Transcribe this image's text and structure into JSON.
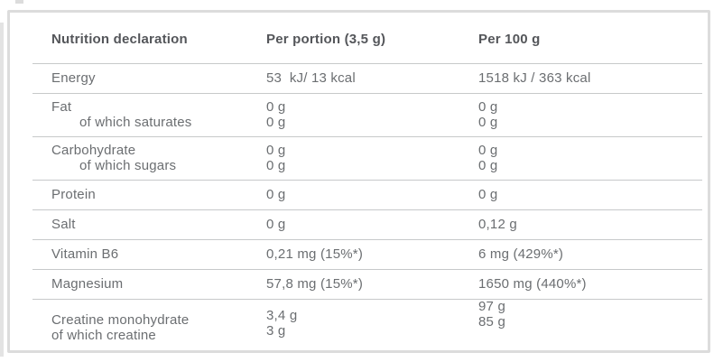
{
  "table": {
    "columns": [
      "Nutrition declaration",
      "Per portion (3,5 g)",
      "Per 100 g"
    ],
    "rows": [
      {
        "labels": [
          "Energy"
        ],
        "indent": [
          false
        ],
        "per_portion": [
          "53  kJ/ 13 kcal"
        ],
        "per_100g": [
          "1518 kJ / 363 kcal"
        ],
        "style": "single"
      },
      {
        "labels": [
          "Fat",
          "of which saturates"
        ],
        "indent": [
          false,
          true
        ],
        "per_portion": [
          "0 g",
          "0 g"
        ],
        "per_100g": [
          "0 g",
          "0 g"
        ],
        "style": "double"
      },
      {
        "labels": [
          "Carbohydrate",
          "of which sugars"
        ],
        "indent": [
          false,
          true
        ],
        "per_portion": [
          "0 g",
          "0 g"
        ],
        "per_100g": [
          "0 g",
          "0 g"
        ],
        "style": "double"
      },
      {
        "labels": [
          "Protein"
        ],
        "indent": [
          false
        ],
        "per_portion": [
          "0 g"
        ],
        "per_100g": [
          "0 g"
        ],
        "style": "single"
      },
      {
        "labels": [
          "Salt"
        ],
        "indent": [
          false
        ],
        "per_portion": [
          "0 g"
        ],
        "per_100g": [
          "0,12 g"
        ],
        "style": "single"
      },
      {
        "labels": [
          "Vitamin B6"
        ],
        "indent": [
          false
        ],
        "per_portion": [
          "0,21 mg (15%*)"
        ],
        "per_100g": [
          "6 mg (429%*)"
        ],
        "style": "single"
      },
      {
        "labels": [
          "Magnesium"
        ],
        "indent": [
          false
        ],
        "per_portion": [
          "57,8 mg (15%*)"
        ],
        "per_100g": [
          "1650 mg (440%*)"
        ],
        "style": "single"
      },
      {
        "labels": [
          "Creatine monohydrate",
          "of which creatine"
        ],
        "indent": [
          false,
          false
        ],
        "per_portion": [
          "3,4 g",
          "3 g"
        ],
        "per_100g": [
          "97 g",
          "85 g"
        ],
        "style": "last"
      }
    ]
  },
  "colors": {
    "card_border": "#dcdcdc",
    "row_separator": "#c7c9ca",
    "header_text": "#54565a",
    "body_text": "#6b6e71",
    "background": "#ffffff"
  }
}
